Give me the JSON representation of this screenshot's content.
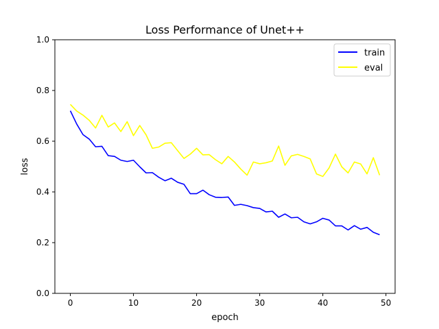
{
  "chart_data": {
    "type": "line",
    "title": "Loss Performance of Unet++",
    "xlabel": "epoch",
    "ylabel": "loss",
    "xlim": [
      -2.45,
      51.45
    ],
    "ylim": [
      0.0,
      1.0
    ],
    "xticks": [
      0,
      10,
      20,
      30,
      40,
      50
    ],
    "xtick_labels": [
      "0",
      "10",
      "20",
      "30",
      "40",
      "50"
    ],
    "yticks": [
      0.0,
      0.2,
      0.4,
      0.6,
      0.8,
      1.0
    ],
    "ytick_labels": [
      "0.0",
      "0.2",
      "0.4",
      "0.6",
      "0.8",
      "1.0"
    ],
    "grid": false,
    "legend": "top-right",
    "x": [
      0,
      1,
      2,
      3,
      4,
      5,
      6,
      7,
      8,
      9,
      10,
      11,
      12,
      13,
      14,
      15,
      16,
      17,
      18,
      19,
      20,
      21,
      22,
      23,
      24,
      25,
      26,
      27,
      28,
      29,
      30,
      31,
      32,
      33,
      34,
      35,
      36,
      37,
      38,
      39,
      40,
      41,
      42,
      43,
      44,
      45,
      46,
      47,
      48,
      49
    ],
    "series": [
      {
        "name": "train",
        "color": "#0000ff",
        "values": [
          0.72,
          0.668,
          0.626,
          0.608,
          0.578,
          0.58,
          0.543,
          0.54,
          0.525,
          0.52,
          0.525,
          0.499,
          0.475,
          0.476,
          0.458,
          0.444,
          0.454,
          0.438,
          0.43,
          0.393,
          0.393,
          0.407,
          0.389,
          0.379,
          0.378,
          0.38,
          0.347,
          0.351,
          0.346,
          0.338,
          0.335,
          0.321,
          0.324,
          0.3,
          0.313,
          0.298,
          0.3,
          0.282,
          0.274,
          0.282,
          0.296,
          0.289,
          0.266,
          0.266,
          0.25,
          0.267,
          0.253,
          0.26,
          0.241,
          0.231
        ]
      },
      {
        "name": "eval",
        "color": "#ffff00",
        "values": [
          0.745,
          0.719,
          0.703,
          0.682,
          0.652,
          0.702,
          0.656,
          0.672,
          0.638,
          0.677,
          0.622,
          0.662,
          0.625,
          0.572,
          0.577,
          0.592,
          0.594,
          0.563,
          0.532,
          0.549,
          0.572,
          0.546,
          0.547,
          0.527,
          0.511,
          0.54,
          0.518,
          0.49,
          0.466,
          0.518,
          0.511,
          0.515,
          0.522,
          0.581,
          0.505,
          0.542,
          0.548,
          0.54,
          0.53,
          0.471,
          0.461,
          0.495,
          0.549,
          0.499,
          0.475,
          0.518,
          0.51,
          0.471,
          0.535,
          0.466
        ]
      }
    ]
  }
}
